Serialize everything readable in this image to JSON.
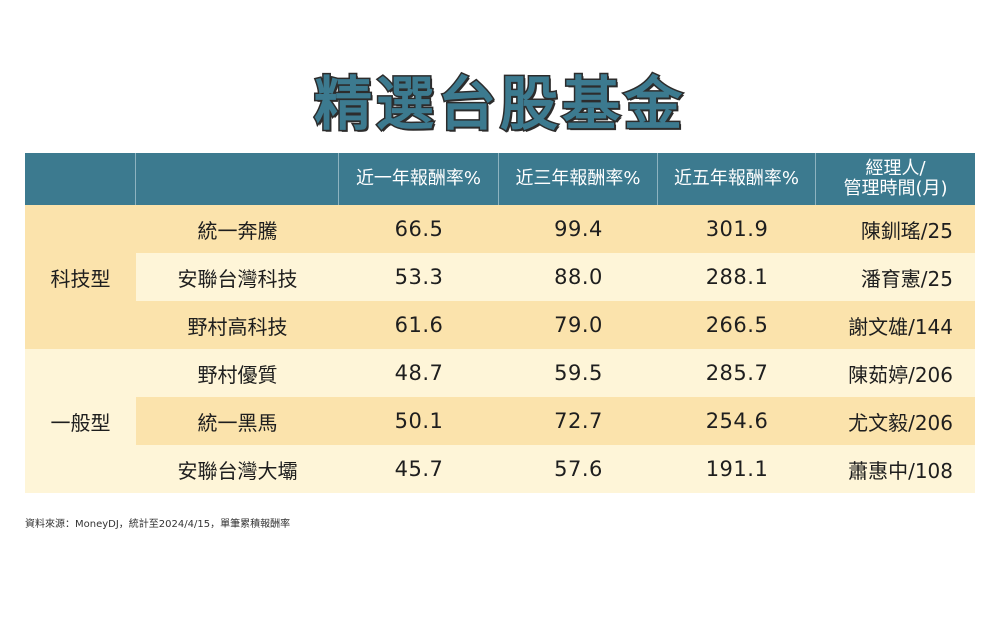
{
  "title": "精選台股基金",
  "headers": {
    "col1": "",
    "col2": "",
    "one_year": "近一年報酬率%",
    "three_year": "近三年報酬率%",
    "five_year": "近五年報酬率%",
    "manager_line1": "經理人/",
    "manager_line2": "管理時間(月)"
  },
  "groups": [
    {
      "label": "科技型",
      "funds": [
        {
          "name": "統一奔騰",
          "y1": "66.5",
          "y3": "99.4",
          "y5": "301.9",
          "manager": "陳釧瑤/25"
        },
        {
          "name": "安聯台灣科技",
          "y1": "53.3",
          "y3": "88.0",
          "y5": "288.1",
          "manager": "潘育憲/25"
        },
        {
          "name": "野村高科技",
          "y1": "61.6",
          "y3": "79.0",
          "y5": "266.5",
          "manager": "謝文雄/144"
        }
      ]
    },
    {
      "label": "一般型",
      "funds": [
        {
          "name": "野村優質",
          "y1": "48.7",
          "y3": "59.5",
          "y5": "285.7",
          "manager": "陳茹婷/206"
        },
        {
          "name": "統一黑馬",
          "y1": "50.1",
          "y3": "72.7",
          "y5": "254.6",
          "manager": "尤文毅/206"
        },
        {
          "name": "安聯台灣大壩",
          "y1": "45.7",
          "y3": "57.6",
          "y5": "191.1",
          "manager": "蕭惠中/108"
        }
      ]
    }
  ],
  "source": "資料來源：MoneyDJ，統計至2024/4/15，單筆累積報酬率",
  "colors": {
    "header_bg": "#3c7a8f",
    "row_dark": "#fbe3ac",
    "row_light": "#fef5d8"
  }
}
